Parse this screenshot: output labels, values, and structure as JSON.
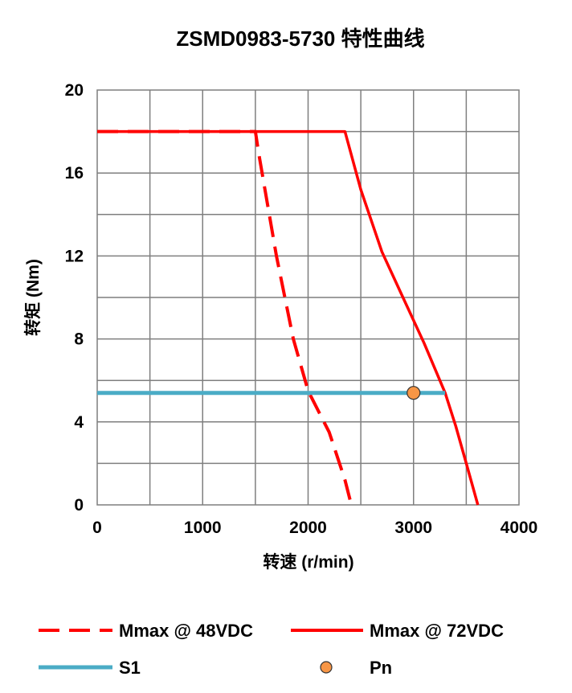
{
  "chart_data": {
    "type": "line",
    "title": "ZSMD0983-5730 特性曲线",
    "xlabel": "转速 (r/min)",
    "ylabel": "转矩 (Nm)",
    "xlim": [
      0,
      4000
    ],
    "ylim": [
      0,
      20
    ],
    "x_ticks": [
      0,
      1000,
      2000,
      3000,
      4000
    ],
    "x_tick_labels": [
      "0",
      "1000",
      "2000",
      "3000",
      "4000"
    ],
    "y_ticks": [
      0,
      4,
      8,
      12,
      16,
      20
    ],
    "y_tick_labels": [
      "0",
      "4",
      "8",
      "12",
      "16",
      "20"
    ],
    "grid": true,
    "x_grid_step": 500,
    "y_grid_step": 2,
    "legend_position": "bottom",
    "series": [
      {
        "name": "Mmax @ 48VDC",
        "style": "dashed",
        "color": "#ff0000",
        "points": [
          [
            0,
            18
          ],
          [
            1500,
            18
          ],
          [
            1530,
            17
          ],
          [
            1700,
            12
          ],
          [
            1860,
            8
          ],
          [
            2000,
            5.5
          ],
          [
            2200,
            3.5
          ],
          [
            2350,
            1.2
          ],
          [
            2410,
            0
          ]
        ]
      },
      {
        "name": "Mmax @ 72VDC",
        "style": "solid",
        "color": "#ff0000",
        "points": [
          [
            0,
            18
          ],
          [
            2350,
            18
          ],
          [
            2500,
            15.2
          ],
          [
            2700,
            12.2
          ],
          [
            2900,
            10
          ],
          [
            3100,
            7.8
          ],
          [
            3300,
            5.4
          ],
          [
            3400,
            3.8
          ],
          [
            3500,
            2
          ],
          [
            3610,
            0
          ]
        ]
      },
      {
        "name": "S1",
        "style": "solid",
        "color": "#4bacc6",
        "points": [
          [
            0,
            5.4
          ],
          [
            3300,
            5.4
          ]
        ]
      },
      {
        "name": "Pn",
        "style": "marker",
        "color": "#f79646",
        "points": [
          [
            3000,
            5.4
          ]
        ]
      }
    ]
  }
}
